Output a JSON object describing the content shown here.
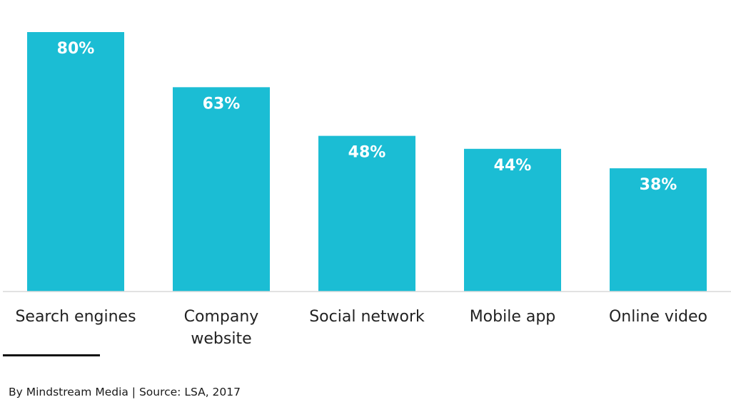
{
  "chart_data": {
    "type": "bar",
    "categories": [
      "Search engines",
      "Company\nwebsite",
      "Social network",
      "Mobile app",
      "Online video"
    ],
    "values": [
      80,
      63,
      48,
      44,
      38
    ],
    "value_labels": [
      "80%",
      "63%",
      "48%",
      "44%",
      "38%"
    ],
    "ylim": [
      0,
      80
    ],
    "grid": false,
    "bar_color": "#1bbdd4",
    "value_label_color": "#ffffff",
    "baseline_color": "#d9d9d9"
  },
  "footer": {
    "credit": "By Mindstream Media | Source: LSA, 2017"
  }
}
